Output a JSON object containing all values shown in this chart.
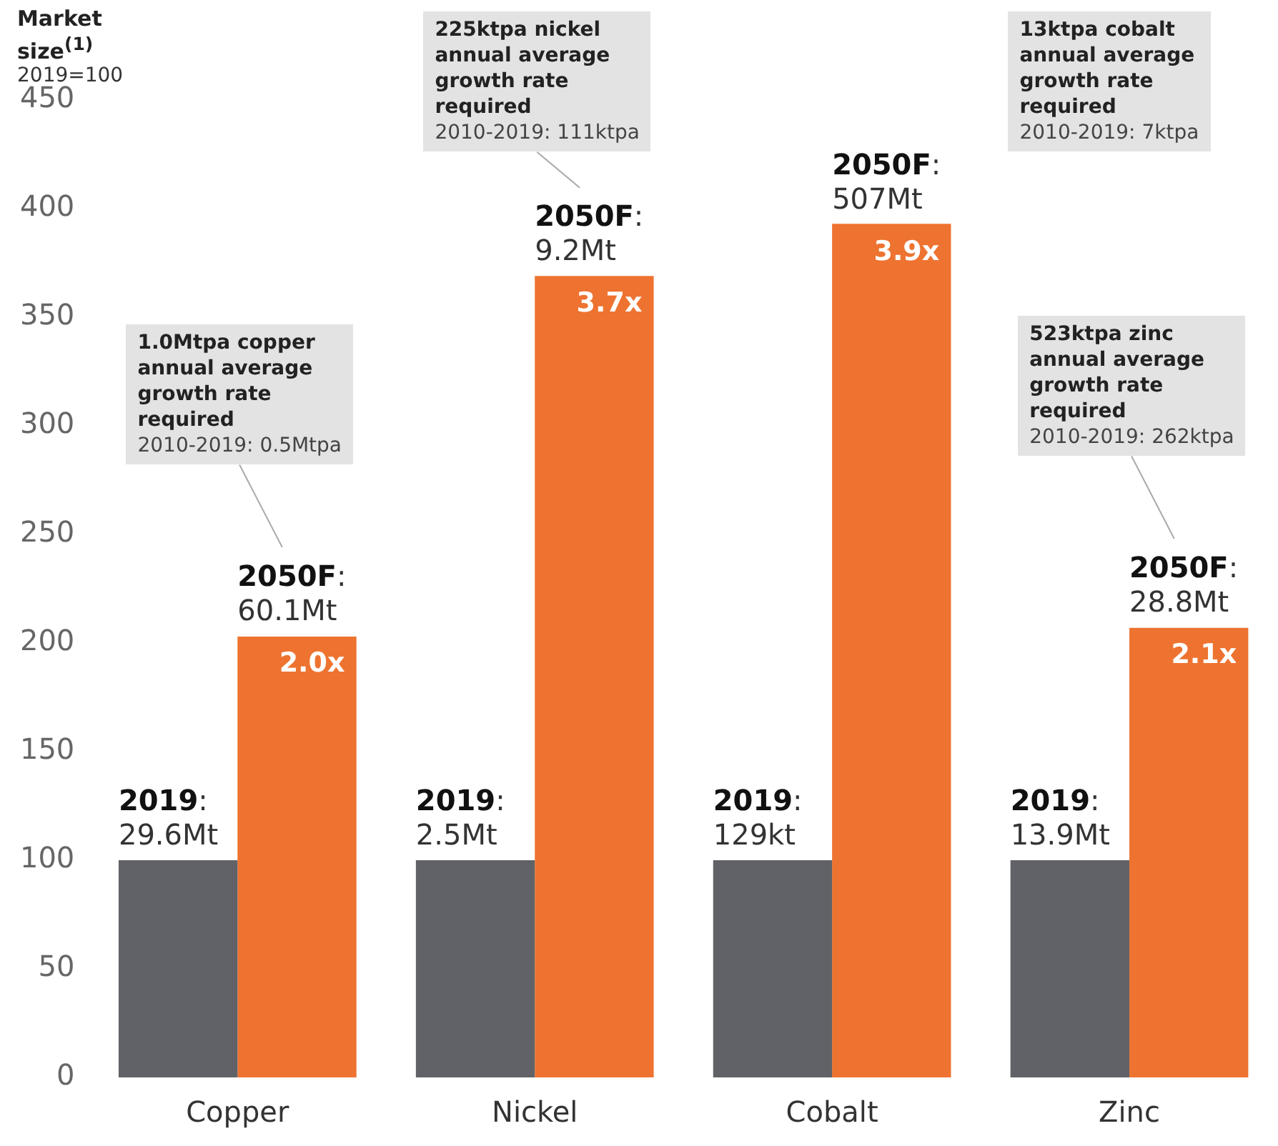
{
  "chart_data": {
    "type": "bar",
    "ylabel": "Market size$^{(1)}$",
    "categories": [
      "Copper",
      "Nickel",
      "Cobalt",
      "Zinc"
    ],
    "series": [
      {
        "color": "#616267",
        "values": [
          100,
          100,
          100,
          100
        ]
      },
      {
        "color": "#ee7330",
        "values": [
          203,
          369,
          393,
          207
        ]
      }
    ],
    "ylim": [
      0,
      450
    ],
    "yticks": [
      0,
      50,
      100,
      150,
      200,
      250,
      300,
      350,
      400,
      450
    ],
    "grid": false,
    "legend": false,
    "annotations": [
      "2019=100",
      {
        "text": "2019:\n29.6Mt",
        "x": "Copper",
        "y": 100
      },
      {
        "text": "2019:\n2.5Mt",
        "x": "Nickel",
        "y": 100
      },
      {
        "text": "2019:\n129kt",
        "x": "Cobalt",
        "y": 100
      },
      {
        "text": "2019:\n13.9Mt",
        "x": "Zinc",
        "y": 100
      },
      {
        "text": "2050F:\n60.1Mt",
        "x": "Copper",
        "y": 203
      },
      {
        "text": "2050F:\n9.2Mt",
        "x": "Nickel",
        "y": 369
      },
      {
        "text": "2050F:\n507Mt",
        "x": "Cobalt",
        "y": 393
      },
      {
        "text": "2050F:\n28.8Mt",
        "x": "Zinc",
        "y": 207
      },
      {
        "text": "2.0x",
        "x": "Copper",
        "y": 203
      },
      {
        "text": "3.7x",
        "x": "Nickel",
        "y": 369
      },
      {
        "text": "3.9x",
        "x": "Cobalt",
        "y": 393
      },
      {
        "text": "2.1x",
        "x": "Zinc",
        "y": 207
      },
      "1.0Mtpa copper\nannual average\ngrowth rate\nrequired\n2010-2019: 0.5Mtpa",
      "225ktpa nickel\nannual average\ngrowth rate\nrequired\n2010-2019: 111ktpa",
      "13ktpa cobalt\nannual average\ngrowth rate\nrequired\n2010-2019: 7ktpa",
      "523ktpa zinc\nannual average\ngrowth rate\nrequired\n2010-2019: 262ktpa"
    ]
  }
}
